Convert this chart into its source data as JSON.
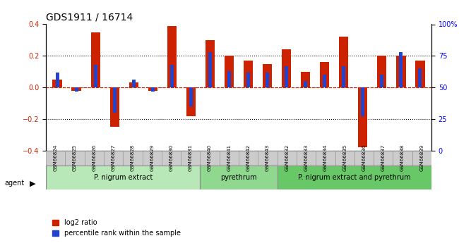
{
  "title": "GDS1911 / 16714",
  "samples": [
    "GSM66824",
    "GSM66825",
    "GSM66826",
    "GSM66827",
    "GSM66828",
    "GSM66829",
    "GSM66830",
    "GSM66831",
    "GSM66840",
    "GSM66841",
    "GSM66842",
    "GSM66843",
    "GSM66832",
    "GSM66833",
    "GSM66834",
    "GSM66835",
    "GSM66836",
    "GSM66837",
    "GSM66838",
    "GSM66839"
  ],
  "log2_ratio": [
    0.05,
    -0.02,
    0.35,
    -0.25,
    0.03,
    -0.02,
    0.39,
    -0.18,
    0.3,
    0.2,
    0.17,
    0.15,
    0.24,
    0.1,
    0.16,
    0.32,
    -0.38,
    0.2,
    0.2,
    0.17
  ],
  "percentile": [
    62,
    47,
    68,
    30,
    56,
    47,
    68,
    35,
    78,
    63,
    62,
    62,
    67,
    55,
    60,
    67,
    27,
    60,
    78,
    65
  ],
  "groups": [
    {
      "label": "P. nigrum extract",
      "start": 0,
      "end": 8,
      "color": "#b8e8b8"
    },
    {
      "label": "pyrethrum",
      "start": 8,
      "end": 12,
      "color": "#90d890"
    },
    {
      "label": "P. nigrum extract and pyrethrum",
      "start": 12,
      "end": 20,
      "color": "#68c868"
    }
  ],
  "bar_color_red": "#cc2200",
  "bar_color_blue": "#2244cc",
  "bar_width": 0.5,
  "ylim_left": [
    -0.4,
    0.4
  ],
  "ylim_right": [
    0,
    100
  ],
  "yticks_left": [
    -0.4,
    -0.2,
    0.0,
    0.2,
    0.4
  ],
  "yticks_right": [
    0,
    25,
    50,
    75,
    100
  ],
  "hline_dotted_vals": [
    -0.2,
    0.0,
    0.2
  ],
  "hline_red_val": 0.0,
  "xlabel": "",
  "legend_red": "log2 ratio",
  "legend_blue": "percentile rank within the sample",
  "agent_label": "agent",
  "background_color": "#ffffff",
  "plot_bg_color": "#ffffff"
}
